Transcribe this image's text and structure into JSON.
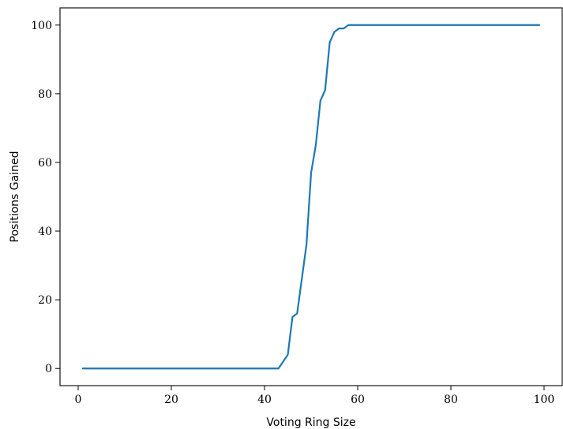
{
  "chart_data": {
    "type": "line",
    "title": "",
    "xlabel": "Voting Ring Size",
    "ylabel": "Positions Gained",
    "xlim": [
      -3.9,
      103.9
    ],
    "ylim": [
      -5,
      105
    ],
    "xticks": [
      0,
      20,
      40,
      60,
      80,
      100
    ],
    "yticks": [
      0,
      20,
      40,
      60,
      80,
      100
    ],
    "grid": false,
    "legend": "none",
    "series": [
      {
        "color": "#1f77b4",
        "x": [
          1,
          43,
          45,
          46,
          47,
          48,
          49,
          50,
          51,
          52,
          53,
          54,
          55,
          56,
          57,
          58,
          60,
          70,
          80,
          90,
          99
        ],
        "y": [
          0,
          0,
          4,
          15,
          16,
          26,
          36,
          57,
          65,
          78,
          81,
          95,
          98,
          99,
          99,
          100,
          100,
          100,
          100,
          100,
          100
        ]
      }
    ]
  }
}
